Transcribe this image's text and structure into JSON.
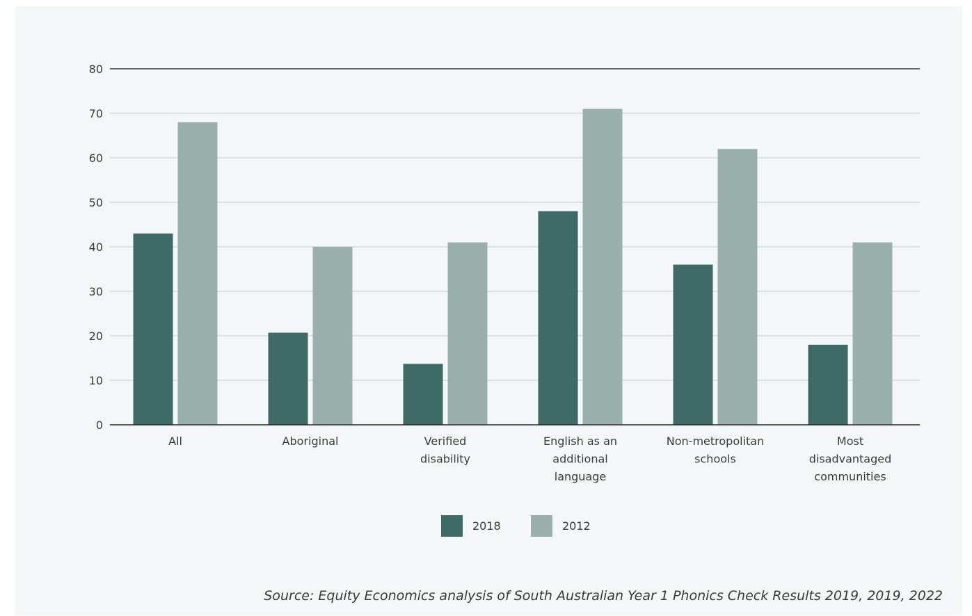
{
  "chart_data": {
    "type": "bar",
    "categories": [
      [
        "All"
      ],
      [
        "Aboriginal"
      ],
      [
        "Verified",
        "disability"
      ],
      [
        "English as an",
        "additional",
        "language"
      ],
      [
        "Non-metropolitan",
        "schools"
      ],
      [
        "Most",
        "disadvantaged",
        "communities"
      ]
    ],
    "series": [
      {
        "name": "2018",
        "color": "#3e6b66",
        "values": [
          43,
          20.7,
          13.7,
          48,
          36,
          18
        ]
      },
      {
        "name": "2012",
        "color": "#99b0ad",
        "values": [
          68,
          40,
          41,
          71,
          62,
          41
        ]
      }
    ],
    "ylim": [
      0,
      80
    ],
    "yticks": [
      0,
      10,
      20,
      30,
      40,
      50,
      60,
      70,
      80
    ],
    "grid": true,
    "legend_position": "bottom-center"
  },
  "source": "Source: Equity Economics analysis of South Australian Year 1 Phonics Check Results 2019, 2019, 2022"
}
